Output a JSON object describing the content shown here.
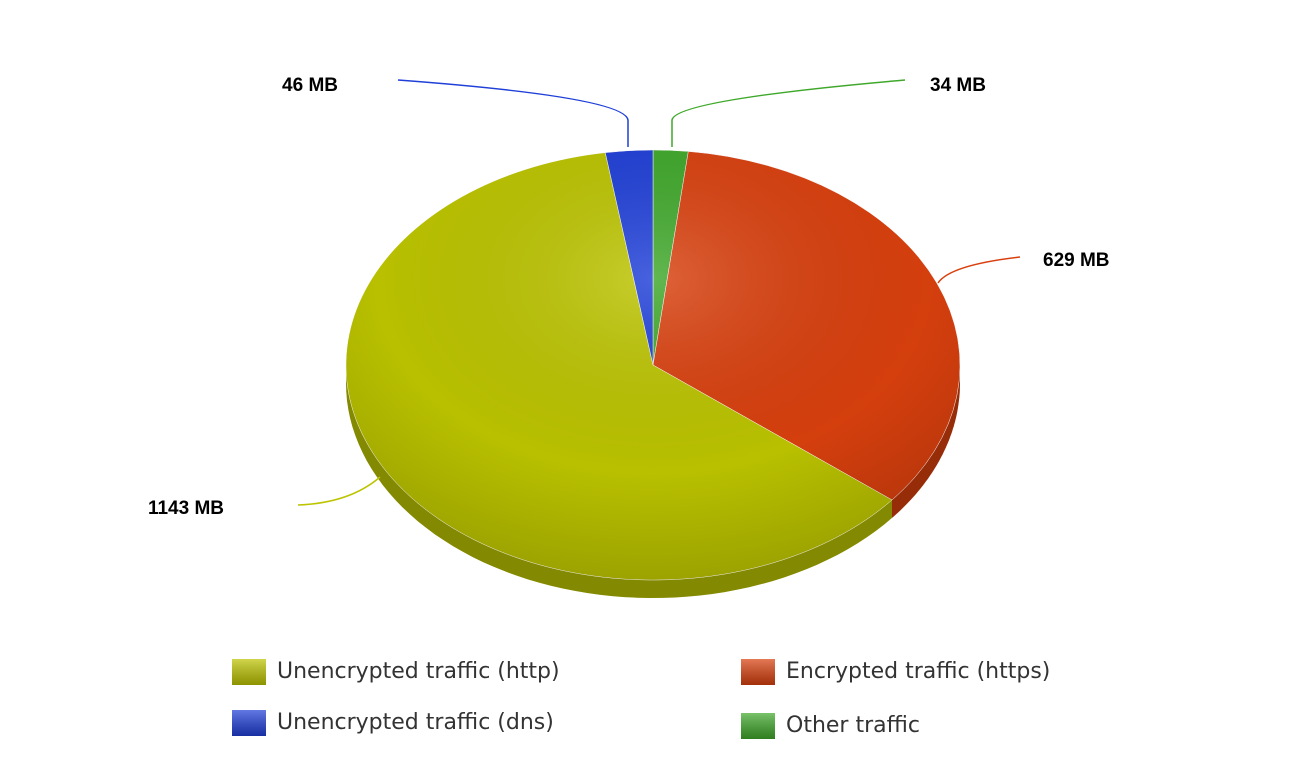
{
  "chart_data": {
    "type": "pie",
    "categories": [
      "Other traffic",
      "Encrypted traffic (https)",
      "Unencrypted traffic (http)",
      "Unencrypted traffic (dns)"
    ],
    "values": [
      34,
      629,
      1143,
      46
    ],
    "value_labels": [
      "34 MB",
      "629 MB",
      "1143 MB",
      "46 MB"
    ],
    "colors": [
      "#3fa82a",
      "#d9400e",
      "#bcc400",
      "#1f3fd8"
    ]
  }
}
